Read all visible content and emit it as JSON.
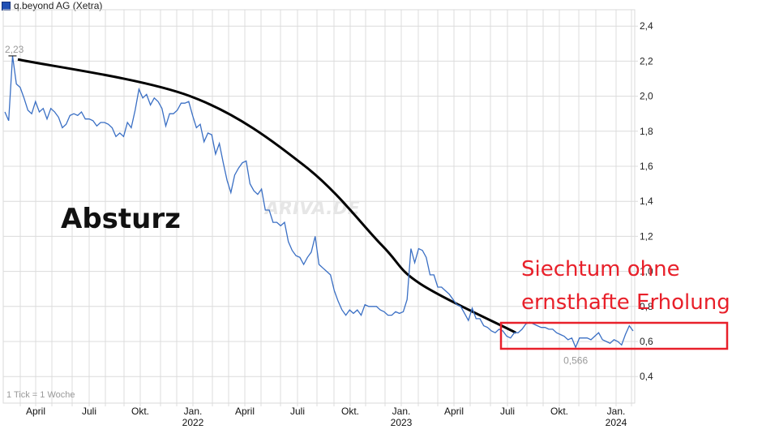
{
  "legend": {
    "label": "q.beyond AG (Xetra)",
    "color": "#1f4fb4"
  },
  "annotations": {
    "left_text": "Absturz",
    "right_line1": "Siechtum ohne",
    "right_line2": "ernsthafte Erholung",
    "max_label": "2,23",
    "min_label": "0,566",
    "tick_note": "1 Tick = 1 Woche",
    "watermark": "ARIVA.DE",
    "red_color": "#e8202a"
  },
  "chart_data": {
    "type": "line",
    "title": "q.beyond AG (Xetra)",
    "xlabel": "",
    "ylabel": "",
    "ylim": [
      0.25,
      2.5
    ],
    "yticks": [
      "2,4",
      "2,2",
      "2,0",
      "1,8",
      "1,6",
      "1,4",
      "1,2",
      "1,0",
      "0,8",
      "0,6",
      "0,4"
    ],
    "xticks": [
      {
        "label": "April",
        "sub": ""
      },
      {
        "label": "Juli",
        "sub": ""
      },
      {
        "label": "Okt.",
        "sub": ""
      },
      {
        "label": "Jan.",
        "sub": "2022"
      },
      {
        "label": "April",
        "sub": ""
      },
      {
        "label": "Juli",
        "sub": ""
      },
      {
        "label": "Okt.",
        "sub": ""
      },
      {
        "label": "Jan.",
        "sub": "2023"
      },
      {
        "label": "April",
        "sub": ""
      },
      {
        "label": "Juli",
        "sub": ""
      },
      {
        "label": "Okt.",
        "sub": ""
      },
      {
        "label": "Jan.",
        "sub": "2024"
      }
    ],
    "grid": true,
    "legend_position": "top-left",
    "series": [
      {
        "name": "q.beyond AG (Xetra)",
        "frequency": "weekly",
        "values": [
          1.91,
          1.86,
          2.23,
          2.07,
          2.05,
          1.99,
          1.92,
          1.9,
          1.97,
          1.91,
          1.93,
          1.87,
          1.93,
          1.91,
          1.88,
          1.82,
          1.84,
          1.89,
          1.9,
          1.89,
          1.91,
          1.87,
          1.87,
          1.86,
          1.83,
          1.85,
          1.85,
          1.84,
          1.82,
          1.77,
          1.79,
          1.77,
          1.85,
          1.82,
          1.92,
          2.04,
          1.99,
          2.01,
          1.95,
          1.99,
          1.97,
          1.93,
          1.83,
          1.9,
          1.9,
          1.92,
          1.96,
          1.96,
          1.97,
          1.89,
          1.82,
          1.84,
          1.74,
          1.79,
          1.78,
          1.67,
          1.73,
          1.62,
          1.52,
          1.45,
          1.55,
          1.59,
          1.62,
          1.63,
          1.5,
          1.46,
          1.44,
          1.47,
          1.35,
          1.35,
          1.28,
          1.28,
          1.26,
          1.28,
          1.17,
          1.12,
          1.09,
          1.08,
          1.04,
          1.08,
          1.11,
          1.2,
          1.04,
          1.02,
          1.0,
          0.98,
          0.89,
          0.83,
          0.78,
          0.75,
          0.78,
          0.76,
          0.78,
          0.75,
          0.81,
          0.8,
          0.8,
          0.8,
          0.78,
          0.77,
          0.75,
          0.75,
          0.77,
          0.76,
          0.77,
          0.84,
          1.13,
          1.05,
          1.13,
          1.12,
          1.08,
          0.98,
          0.98,
          0.91,
          0.91,
          0.89,
          0.87,
          0.84,
          0.81,
          0.8,
          0.76,
          0.72,
          0.79,
          0.73,
          0.73,
          0.69,
          0.68,
          0.66,
          0.65,
          0.67,
          0.66,
          0.63,
          0.62,
          0.65,
          0.65,
          0.67,
          0.7,
          0.71,
          0.7,
          0.69,
          0.68,
          0.68,
          0.67,
          0.67,
          0.65,
          0.64,
          0.63,
          0.61,
          0.62,
          0.566,
          0.62,
          0.62,
          0.62,
          0.61,
          0.63,
          0.65,
          0.61,
          0.6,
          0.59,
          0.61,
          0.6,
          0.58,
          0.64,
          0.69,
          0.66
        ]
      }
    ],
    "trend_curve": {
      "description": "Hand-drawn black falling curve (Absturz)",
      "points_approx": [
        [
          0,
          2.21
        ],
        [
          45,
          2.0
        ],
        [
          75,
          1.6
        ],
        [
          95,
          1.15
        ],
        [
          105,
          0.93
        ],
        [
          130,
          0.65
        ]
      ]
    },
    "highlight_box": {
      "from_week": 130,
      "to_week": 171,
      "ymin": 0.59,
      "ymax": 0.73
    },
    "max": {
      "value": 2.23,
      "label": "2,23"
    },
    "min": {
      "value": 0.566,
      "label": "0,566"
    }
  }
}
